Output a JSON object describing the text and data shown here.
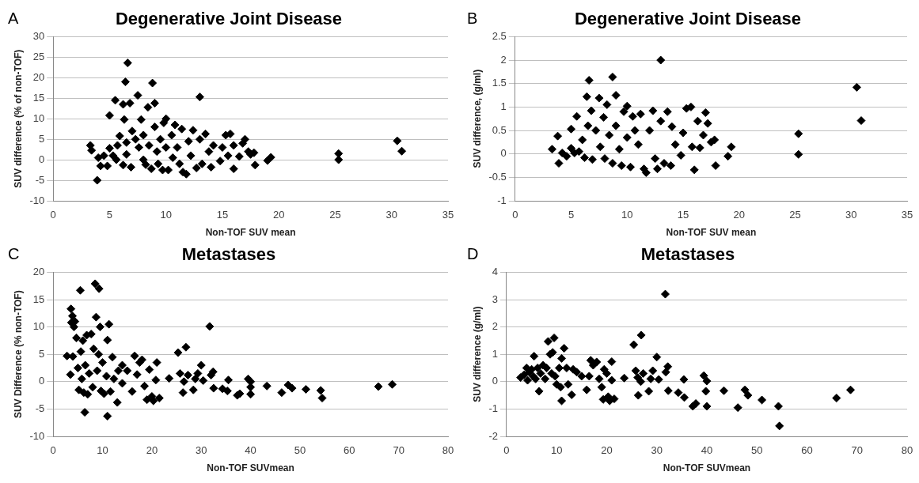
{
  "chart_data": [
    {
      "type": "scatter",
      "title": "Degenerative Joint Disease",
      "xlabel": "Non-TOF SUV mean",
      "ylabel": "SUV difference (% of non-TOF)",
      "annotations": [
        "A"
      ],
      "color": "#000000",
      "marker": "diamond",
      "grid": "y",
      "xlim": [
        0,
        35
      ],
      "xticks": [
        0,
        5,
        10,
        15,
        20,
        25,
        30,
        35
      ],
      "ylim": [
        -10,
        30
      ],
      "yticks": [
        -10,
        -5,
        0,
        5,
        10,
        15,
        20,
        25,
        30
      ],
      "x": [
        3.3,
        3.4,
        3.9,
        4,
        4.2,
        4.5,
        4.8,
        5,
        5,
        5.3,
        5.5,
        5.6,
        5.7,
        5.9,
        6.2,
        6.2,
        6.3,
        6.4,
        6.5,
        6.5,
        6.6,
        6.8,
        6.9,
        7,
        7.3,
        7.5,
        7.6,
        7.8,
        8,
        8,
        8.2,
        8.4,
        8.5,
        8.7,
        8.8,
        9,
        9,
        9.2,
        9.3,
        9.5,
        9.7,
        9.8,
        10,
        10,
        10.2,
        10.5,
        10.6,
        10.8,
        11,
        11.2,
        11.4,
        11.5,
        11.8,
        12,
        12.2,
        12.4,
        12.7,
        13,
        13,
        13.2,
        13.5,
        13.8,
        14,
        14.2,
        14.8,
        15,
        15.3,
        15.5,
        15.7,
        16,
        16,
        16.5,
        16.8,
        17,
        17.3,
        17.5,
        17.8,
        17.9,
        19,
        19.3,
        25.3,
        25.3,
        30.5,
        30.9
      ],
      "values": [
        3.5,
        2.3,
        -5,
        0.5,
        -1.5,
        1,
        -1.5,
        2.8,
        10.8,
        1,
        14.5,
        0,
        3.5,
        5.8,
        -1.3,
        13.5,
        9.8,
        19,
        1.3,
        4.2,
        23.6,
        13.8,
        -1.8,
        7,
        5,
        15.7,
        3,
        9.8,
        0,
        6,
        -1.2,
        12.8,
        3.5,
        -2.2,
        18.7,
        13.8,
        8,
        2,
        -1,
        5,
        -2.5,
        9,
        10,
        3,
        -2.5,
        6,
        0.5,
        8.5,
        3,
        -1,
        7.5,
        -3,
        -3.5,
        4.5,
        1,
        7.2,
        -2,
        15.3,
        5,
        -1,
        6.3,
        2,
        -1.8,
        3.5,
        -0.3,
        3,
        6,
        1,
        6.3,
        -2.2,
        3.5,
        0.8,
        4,
        5,
        2,
        1.3,
        1.7,
        -1.3,
        -0.2,
        0.6,
        1.5,
        0,
        4.6,
        2.1
      ]
    },
    {
      "type": "scatter",
      "title": "Degenerative Joint Disease",
      "xlabel": "Non-TOF SUV mean",
      "ylabel": "SUV difference, (g/ml)",
      "annotations": [
        "B"
      ],
      "color": "#000000",
      "marker": "diamond",
      "grid": "y",
      "xlim": [
        0,
        35
      ],
      "xticks": [
        0,
        5,
        10,
        15,
        20,
        25,
        30,
        35
      ],
      "ylim": [
        -1,
        2.5
      ],
      "yticks": [
        -1,
        -0.5,
        0,
        0.5,
        1,
        1.5,
        2,
        2.5
      ],
      "x": [
        3.3,
        3.8,
        3.9,
        4.2,
        4.6,
        5,
        5,
        5.3,
        5.5,
        5.7,
        6,
        6.2,
        6.4,
        6.5,
        6.6,
        6.8,
        6.9,
        7.2,
        7.5,
        7.6,
        7.9,
        8,
        8.2,
        8.4,
        8.7,
        8.7,
        9,
        9,
        9.3,
        9.5,
        9.7,
        10,
        10,
        10.3,
        10.5,
        10.7,
        11,
        11.2,
        11.5,
        11.7,
        12,
        12.3,
        12.5,
        12.7,
        13,
        13,
        13.3,
        13.6,
        13.9,
        14,
        14.3,
        14.8,
        15,
        15.3,
        15.7,
        15.8,
        16,
        16.3,
        16.5,
        16.8,
        17,
        17.2,
        17.5,
        17.8,
        17.9,
        19,
        19.3,
        25.3,
        25.3,
        30.5,
        30.9
      ],
      "values": [
        0.1,
        0.38,
        -0.2,
        0.02,
        -0.05,
        0.53,
        0.12,
        0.02,
        0.8,
        0.05,
        0.3,
        -0.08,
        1.22,
        0.6,
        1.57,
        0.92,
        -0.12,
        0.5,
        1.19,
        0.15,
        0.78,
        -0.1,
        1.05,
        0.4,
        1.64,
        -0.2,
        1.25,
        0.6,
        0.1,
        -0.25,
        0.9,
        1.02,
        0.35,
        -0.28,
        0.8,
        0.5,
        0.2,
        0.85,
        -0.32,
        -0.4,
        0.5,
        0.92,
        -0.1,
        -0.32,
        2,
        0.7,
        -0.2,
        0.9,
        -0.25,
        0.58,
        0.2,
        -0.03,
        0.45,
        0.97,
        1,
        0.15,
        -0.34,
        0.7,
        0.13,
        0.4,
        0.88,
        0.65,
        0.25,
        0.3,
        -0.25,
        -0.05,
        0.15,
        0.43,
        -0.01,
        1.42,
        0.71
      ]
    },
    {
      "type": "scatter",
      "title": "Metastases",
      "xlabel": "Non-TOF SUVmean",
      "ylabel": "SUV Difference (% non-TOF)",
      "annotations": [
        "C"
      ],
      "color": "#000000",
      "marker": "diamond",
      "grid": "y",
      "xlim": [
        0,
        80
      ],
      "xticks": [
        0,
        10,
        20,
        30,
        40,
        50,
        60,
        70,
        80
      ],
      "ylim": [
        -10,
        20
      ],
      "yticks": [
        -10,
        -5,
        0,
        5,
        10,
        15,
        20
      ],
      "x": [
        2.8,
        3.5,
        3.6,
        3.7,
        3.9,
        4,
        4.2,
        4.4,
        4.7,
        5,
        5.2,
        5.5,
        5.6,
        5.8,
        6,
        6.2,
        6.4,
        6.5,
        6.8,
        7,
        7.3,
        7.7,
        8,
        8.2,
        8.5,
        8.7,
        8.9,
        9.2,
        9.3,
        9.5,
        9.7,
        10,
        10.3,
        10.8,
        11,
        11,
        11.3,
        11.6,
        12,
        12.3,
        13,
        13.2,
        14,
        14,
        15,
        16,
        16.5,
        17,
        17.5,
        18,
        18.5,
        19,
        19.5,
        20,
        20.3,
        20.8,
        21,
        21.5,
        23.5,
        25.3,
        25.7,
        26.3,
        26.5,
        26.9,
        27.3,
        28.4,
        28.8,
        29.3,
        30,
        30.4,
        31.7,
        32,
        32.4,
        32.5,
        34.3,
        35.3,
        35.5,
        37.3,
        37.8,
        39.5,
        40,
        40,
        40,
        43.3,
        46.3,
        47.6,
        48.4,
        51.2,
        54.2,
        54.5,
        65.9,
        68.7
      ],
      "values": [
        4.7,
        1.3,
        13.3,
        10.8,
        12,
        4.6,
        10,
        11,
        8,
        2.5,
        -1.5,
        16.7,
        5.5,
        0.5,
        7.5,
        -2,
        -5.6,
        3,
        8.5,
        -2.3,
        1.5,
        8.7,
        -1,
        6,
        17.9,
        11.8,
        2,
        5,
        17,
        10,
        -1.7,
        3.5,
        -2.2,
        1,
        -6.3,
        7.6,
        10.5,
        -1.8,
        4.5,
        0.5,
        -3.8,
        2,
        3,
        -0.3,
        2,
        -1.8,
        4.7,
        1.3,
        3.5,
        4,
        -0.8,
        -3.3,
        2.2,
        -2.7,
        -3.5,
        0.3,
        3.5,
        -3,
        0.6,
        5.3,
        1.5,
        -2,
        0,
        6.3,
        1.2,
        -1.5,
        0.5,
        1.5,
        3,
        0.2,
        10.1,
        1.2,
        1.8,
        -1.2,
        -1.3,
        -1.7,
        0.3,
        -2.5,
        -2.2,
        0.5,
        -1,
        0,
        -2.3,
        -0.8,
        -2,
        -0.6,
        -1.2,
        -1.4,
        -1.6,
        -3,
        -0.9,
        -0.5
      ]
    },
    {
      "type": "scatter",
      "title": "Metastases",
      "xlabel": "Non-TOF SUVmean",
      "ylabel": "SUV difference (g/ml)",
      "annotations": [
        "D"
      ],
      "color": "#000000",
      "marker": "diamond",
      "grid": "y",
      "xlim": [
        0,
        80
      ],
      "xticks": [
        0,
        10,
        20,
        30,
        40,
        50,
        60,
        70,
        80
      ],
      "ylim": [
        -2,
        4
      ],
      "yticks": [
        -2,
        -1,
        0,
        1,
        2,
        3,
        4
      ],
      "x": [
        2.8,
        3.5,
        4,
        4.2,
        4.5,
        5,
        5.3,
        5.5,
        5.8,
        6.2,
        6.5,
        6.8,
        7.3,
        7.7,
        8,
        8.3,
        8.7,
        9,
        9.2,
        9.5,
        9.7,
        10,
        10.5,
        10.8,
        11,
        11,
        11.5,
        12,
        12.3,
        13,
        13.3,
        14,
        15,
        16,
        16.5,
        16.8,
        17.3,
        18,
        18.5,
        19,
        19.5,
        19.3,
        20,
        20.3,
        20.6,
        21,
        21,
        21.5,
        23.5,
        25.4,
        25.8,
        26.2,
        26.3,
        26.8,
        26.9,
        27.3,
        28.4,
        28.8,
        29.2,
        30,
        30.4,
        31.7,
        31.8,
        32.2,
        32.3,
        34.3,
        35.4,
        35.5,
        37.2,
        37.8,
        39.4,
        39.8,
        40,
        40,
        43.4,
        46.2,
        47.6,
        48.2,
        51,
        54.3,
        54.5,
        65.9,
        68.7
      ],
      "values": [
        0.15,
        0.25,
        0.5,
        0.05,
        0.35,
        0.45,
        0.2,
        0.93,
        0.1,
        0.5,
        -0.35,
        0.3,
        0.6,
        0.1,
        0.5,
        1.47,
        1,
        0.3,
        1.07,
        1.6,
        0.2,
        -0.1,
        0.5,
        -0.2,
        0.85,
        -0.7,
        1.22,
        0.5,
        -0.1,
        -0.48,
        0.45,
        0.35,
        0.2,
        -0.3,
        0.2,
        0.78,
        0.6,
        0.72,
        0.1,
        -0.2,
        0.45,
        -0.65,
        0.3,
        -0.55,
        -0.7,
        0.05,
        0.73,
        -0.63,
        0.13,
        1.35,
        0.4,
        0.15,
        -0.5,
        0,
        1.7,
        0.3,
        -0.35,
        0.1,
        0.4,
        0.9,
        0.08,
        3.2,
        0.35,
        0.55,
        -0.33,
        -0.4,
        0.08,
        -0.58,
        -0.9,
        -0.8,
        0.22,
        -0.35,
        0.02,
        -0.9,
        -0.33,
        -0.95,
        -0.3,
        -0.5,
        -0.67,
        -0.9,
        -1.62,
        -0.6,
        -0.3
      ]
    }
  ]
}
